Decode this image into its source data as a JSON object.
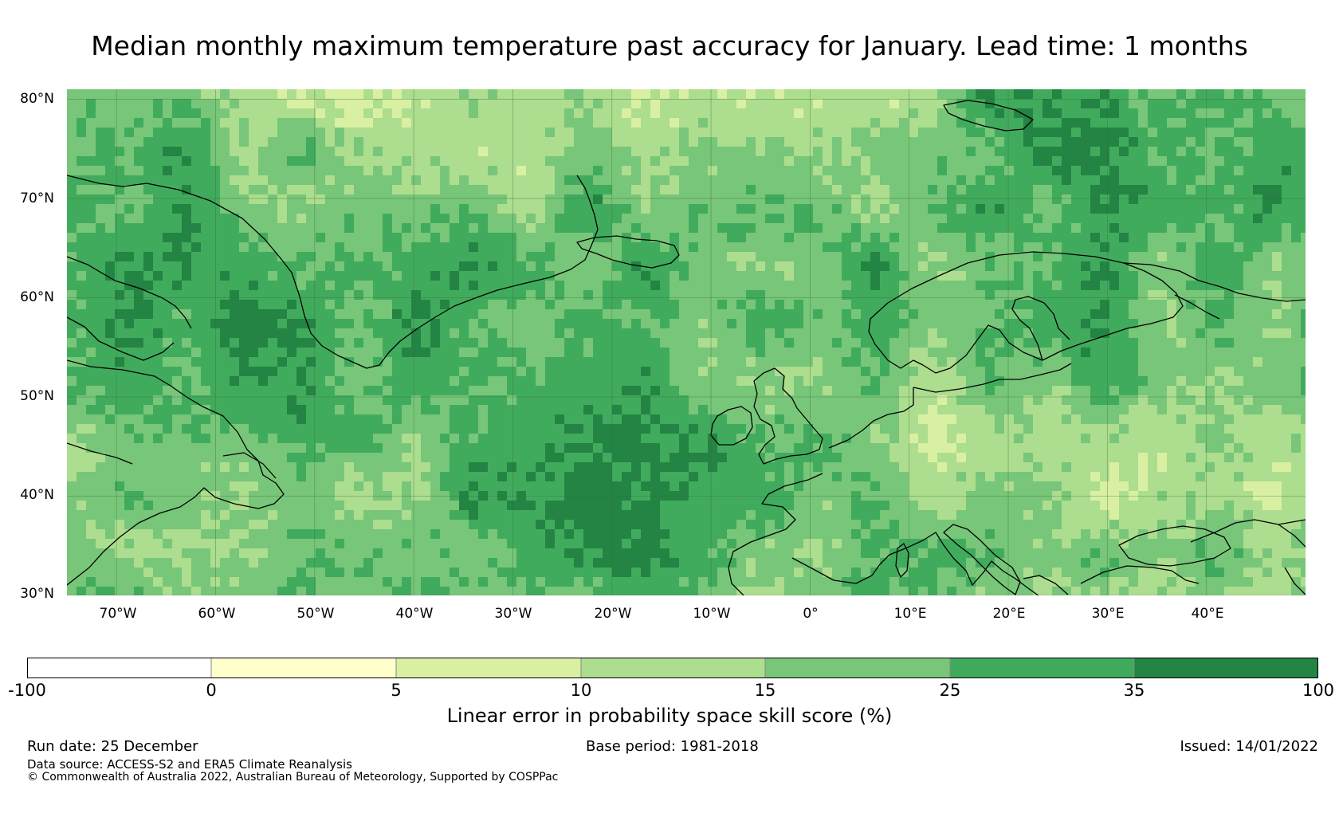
{
  "title": "Median monthly maximum temperature past accuracy for January. Lead time: 1 months",
  "map": {
    "lat_labels": [
      "80°N",
      "70°N",
      "60°N",
      "50°N",
      "40°N",
      "30°N"
    ],
    "lon_labels": [
      "70°W",
      "60°W",
      "50°W",
      "40°W",
      "30°W",
      "20°W",
      "10°W",
      "0°",
      "10°E",
      "20°E",
      "30°E",
      "40°E"
    ],
    "lat_range": [
      30,
      81
    ],
    "lon_range": [
      -75,
      50
    ]
  },
  "legend": {
    "title": "Linear error in probability space skill score (%)",
    "ticks": [
      "-100",
      "0",
      "5",
      "10",
      "15",
      "25",
      "35",
      "100"
    ],
    "bins": [
      {
        "range": "-100 to 0",
        "color": "#ffffff"
      },
      {
        "range": "0 to 5",
        "color": "#ffffcc"
      },
      {
        "range": "5 to 10",
        "color": "#d9f0a3"
      },
      {
        "range": "10 to 15",
        "color": "#addd8e"
      },
      {
        "range": "15 to 25",
        "color": "#78c679"
      },
      {
        "range": "25 to 35",
        "color": "#41ab5d"
      },
      {
        "range": "35 to 100",
        "color": "#238443"
      }
    ]
  },
  "footer": {
    "run_date": "Run date: 25 December",
    "base_period": "Base period: 1981-2018",
    "issued": "Issued: 14/01/2022",
    "data_source": "Data source: ACCESS-S2 and ERA5 Climate Reanalysis",
    "copyright": "© Commonwealth of Australia 2022, Australian Bureau of Meteorology, Supported by COSPPac"
  }
}
